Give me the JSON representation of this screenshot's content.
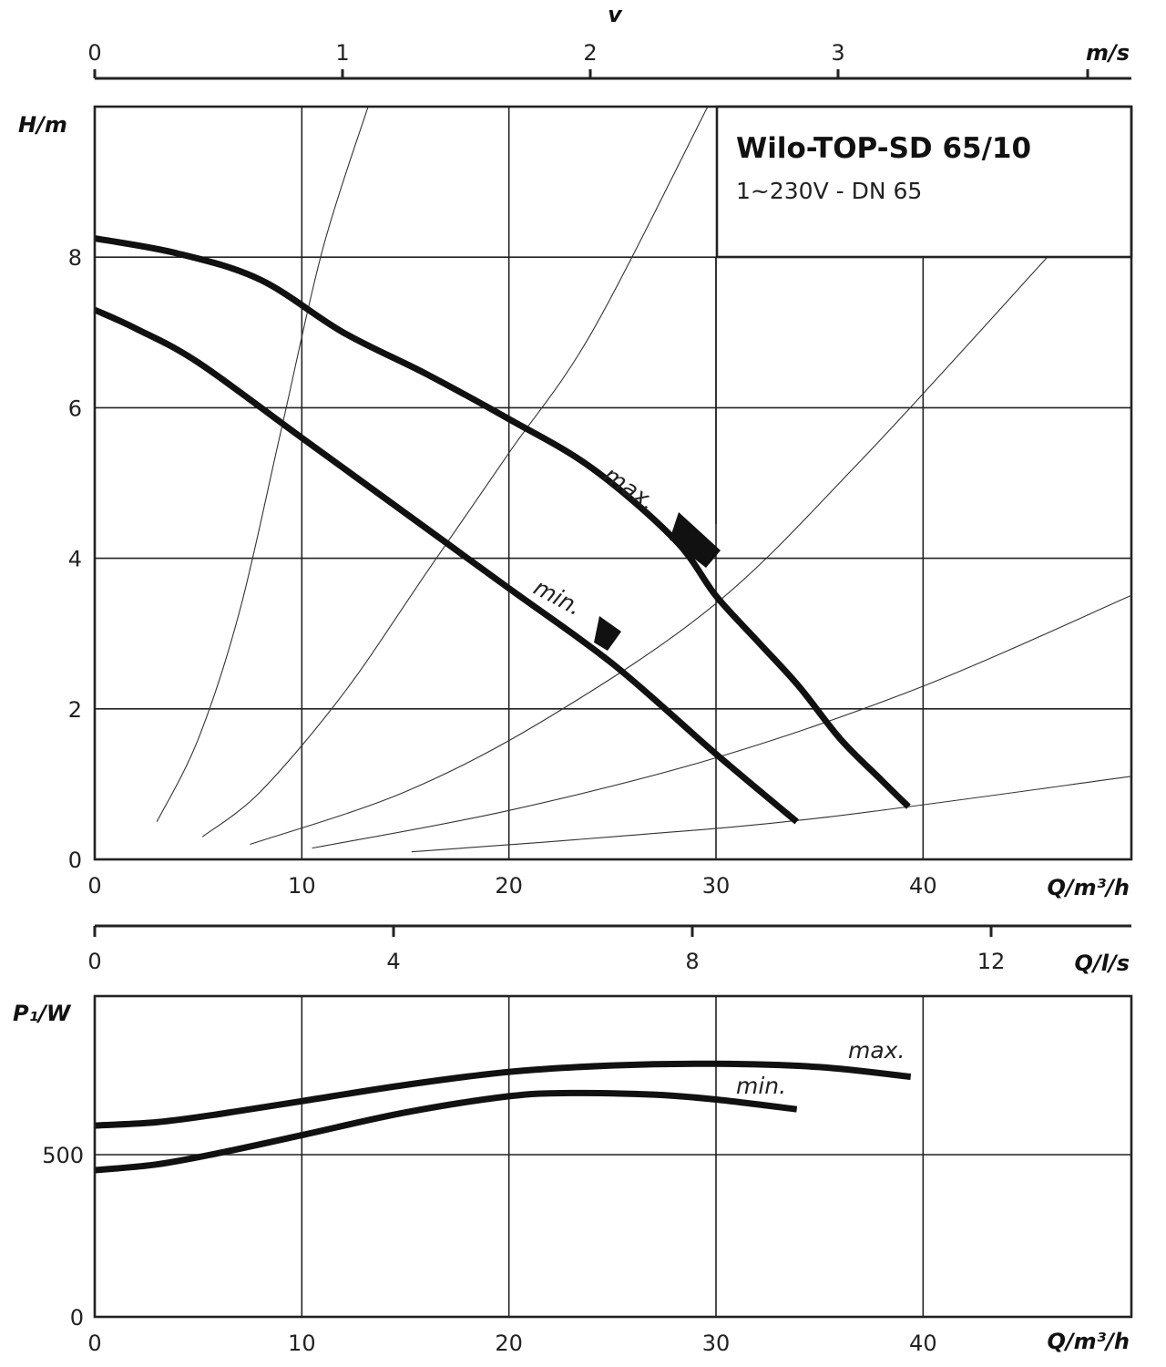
{
  "colors": {
    "curve": "#111111",
    "grid": "#222222",
    "background": "#ffffff"
  },
  "info_box": {
    "title": "Wilo-TOP-SD 65/10",
    "subtitle": "1~230V - DN 65"
  },
  "chart_data": [
    {
      "type": "line",
      "name": "head",
      "ylabel": "H/m",
      "xlabel": "Q/m³/h",
      "xlim": [
        0,
        50
      ],
      "ylim": [
        0,
        10
      ],
      "grid": true,
      "x_ticks": [
        "0",
        "10",
        "20",
        "30",
        "40"
      ],
      "y_ticks": [
        "0",
        "2",
        "4",
        "6",
        "8"
      ],
      "secondary_axis": {
        "label": "v",
        "unit": "m/s",
        "ticks": [
          "0",
          "1",
          "2",
          "3"
        ],
        "values": [
          0,
          1,
          2,
          3
        ],
        "range": [
          0,
          4.17
        ]
      },
      "series": [
        {
          "name": "max.",
          "x": [
            0,
            4,
            8,
            12,
            16,
            20,
            24,
            28,
            30,
            32,
            34,
            36,
            38,
            39.3
          ],
          "y": [
            8.25,
            8.05,
            7.7,
            7.0,
            6.45,
            5.85,
            5.2,
            4.25,
            3.5,
            2.9,
            2.3,
            1.6,
            1.05,
            0.7
          ]
        },
        {
          "name": "min.",
          "x": [
            0,
            2,
            5,
            10,
            15,
            20,
            25,
            30,
            33.9
          ],
          "y": [
            7.3,
            7.05,
            6.6,
            5.6,
            4.6,
            3.6,
            2.6,
            1.4,
            0.5
          ]
        }
      ],
      "system_curves": [
        {
          "x": [
            3,
            5,
            7,
            9,
            11,
            13.2
          ],
          "y": [
            0.5,
            1.6,
            3.3,
            5.7,
            8.1,
            10
          ]
        },
        {
          "x": [
            5.2,
            8,
            12,
            16,
            20,
            24,
            29.6
          ],
          "y": [
            0.3,
            0.9,
            2.2,
            3.8,
            5.4,
            7.0,
            10
          ]
        },
        {
          "x": [
            7.5,
            15,
            22,
            30,
            37,
            46
          ],
          "y": [
            0.2,
            0.9,
            1.9,
            3.4,
            5.3,
            8.0
          ]
        },
        {
          "x": [
            10.5,
            20,
            30,
            40,
            50
          ],
          "y": [
            0.15,
            0.65,
            1.35,
            2.3,
            3.5
          ]
        },
        {
          "x": [
            15.3,
            25,
            35,
            50
          ],
          "y": [
            0.1,
            0.3,
            0.55,
            1.1
          ]
        }
      ]
    },
    {
      "type": "line",
      "name": "power",
      "ylabel": "P₁/W",
      "xlabel": "Q/m³/h",
      "xlim": [
        0,
        50
      ],
      "ylim": [
        0,
        1000
      ],
      "grid": true,
      "x_ticks": [
        "0",
        "10",
        "20",
        "30",
        "40"
      ],
      "y_ticks": [
        "0",
        "500"
      ],
      "secondary_axis": {
        "label": "Q/l/s",
        "ticks": [
          "0",
          "4",
          "8",
          "12"
        ],
        "values": [
          0,
          4,
          8,
          12
        ],
        "range": [
          0,
          13.9
        ]
      },
      "series": [
        {
          "name": "max.",
          "x": [
            0,
            3,
            6,
            10,
            15,
            20,
            25,
            30,
            35,
            39.4
          ],
          "y": [
            590,
            600,
            625,
            665,
            715,
            755,
            775,
            780,
            770,
            740
          ]
        },
        {
          "name": "min.",
          "x": [
            0,
            3,
            6,
            10,
            15,
            20,
            23,
            27,
            30,
            33.9
          ],
          "y": [
            452,
            470,
            505,
            560,
            630,
            680,
            690,
            685,
            670,
            640
          ]
        }
      ]
    }
  ]
}
